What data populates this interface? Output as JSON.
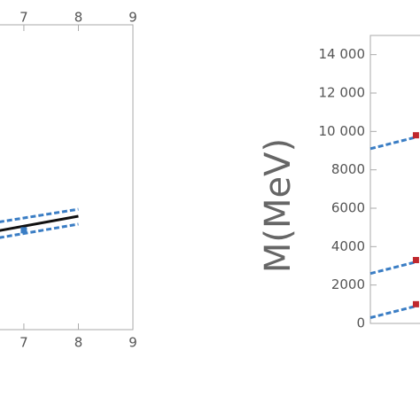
{
  "chart_data": [
    {
      "type": "line",
      "x": [
        6.4,
        8
      ],
      "xlim": [
        6.4,
        9
      ],
      "xticks": [
        7,
        8,
        9
      ],
      "ylim": [
        0,
        100
      ],
      "series": [
        {
          "color": "#111111",
          "dash": false,
          "values": [
            32,
            37.2
          ]
        },
        {
          "color": "#3a7dc4",
          "dash": true,
          "values": [
            34.9,
            39.5
          ]
        },
        {
          "color": "#3a7dc4",
          "dash": true,
          "values": [
            29.7,
            34.6
          ]
        }
      ],
      "markers": {
        "x": [
          7
        ],
        "values": [
          32.6
        ],
        "color": "#3a7dc4"
      }
    },
    {
      "type": "line",
      "ylabel": "M(MeV)",
      "x": [
        -1,
        0
      ],
      "xlim": [
        -1,
        0.05
      ],
      "ylim": [
        0,
        15000
      ],
      "yticks": [
        0,
        2000,
        4000,
        6000,
        8000,
        {
          "value": 10000,
          "label": "10 000"
        },
        {
          "value": 12000,
          "label": "12 000"
        },
        {
          "value": 14000,
          "label": "14 000"
        }
      ],
      "series": [
        {
          "color": "#3a7dc4",
          "dash": true,
          "values": [
            9100,
            9700
          ]
        },
        {
          "color": "#3a7dc4",
          "dash": true,
          "values": [
            2600,
            3200
          ]
        },
        {
          "color": "#3a7dc4",
          "dash": true,
          "values": [
            300,
            900
          ]
        }
      ],
      "markers": {
        "x": [
          0,
          0,
          0
        ],
        "values": [
          9800,
          3300,
          1000
        ],
        "color": "#c0282d"
      }
    }
  ]
}
